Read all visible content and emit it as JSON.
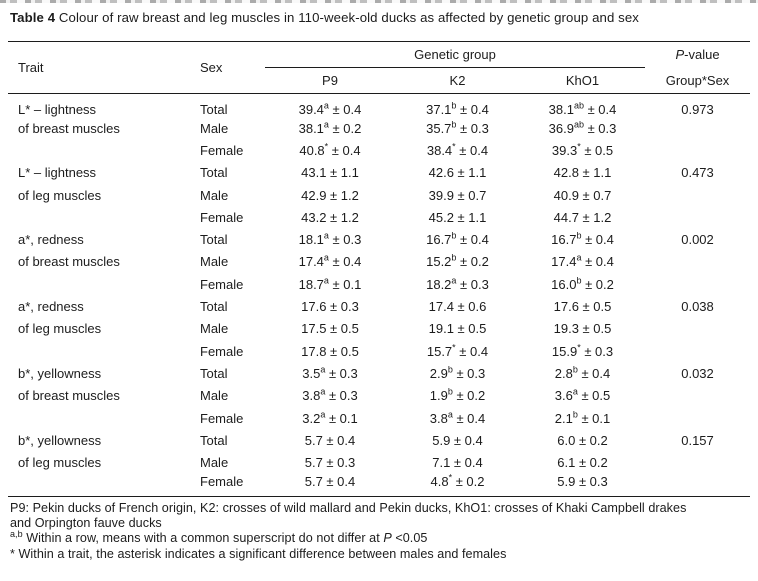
{
  "page": {
    "background": "#ffffff",
    "ink": "#1c1c1c"
  },
  "title": {
    "segments": [
      {
        "t": "Table 4",
        "s": "b"
      },
      {
        "t": " Colour of raw breast and leg muscles in 110-week-old ducks as affected by genetic group and sex",
        "s": "n"
      }
    ]
  },
  "table": {
    "headers": {
      "trait": "Trait",
      "sex": "Sex",
      "genetic_group": "Genetic group",
      "pvalue_segments": [
        {
          "t": "P",
          "s": "i"
        },
        {
          "t": "-value",
          "s": "n"
        }
      ],
      "groups": [
        "P9",
        "K2",
        "KhO1"
      ],
      "pvalue_sub": "Group*Sex"
    },
    "plus_minus": "±",
    "blocks": [
      {
        "trait": [
          "L* – lightness",
          "of breast muscles"
        ],
        "rows": [
          {
            "sex": "Total",
            "cells": [
              {
                "mean": "39.4",
                "sup": "a",
                "err": "0.4"
              },
              {
                "mean": "37.1",
                "sup": "b",
                "err": "0.4"
              },
              {
                "mean": "38.1",
                "sup": "ab",
                "err": "0.4"
              }
            ],
            "p": "0.973"
          },
          {
            "sex": "Male",
            "cells": [
              {
                "mean": "38.1",
                "sup": "a",
                "err": "0.2"
              },
              {
                "mean": "35.7",
                "sup": "b",
                "err": "0.3"
              },
              {
                "mean": "36.9",
                "sup": "ab",
                "err": "0.3"
              }
            ],
            "p": ""
          },
          {
            "sex": "Female",
            "cells": [
              {
                "mean": "40.8",
                "sup": "*",
                "err": "0.4"
              },
              {
                "mean": "38.4",
                "sup": "*",
                "err": "0.4"
              },
              {
                "mean": "39.3",
                "sup": "*",
                "err": "0.5"
              }
            ],
            "p": ""
          }
        ]
      },
      {
        "trait": [
          "L* – lightness",
          "of leg muscles"
        ],
        "rows": [
          {
            "sex": "Total",
            "cells": [
              {
                "mean": "43.1",
                "sup": "",
                "err": "1.1"
              },
              {
                "mean": "42.6",
                "sup": "",
                "err": "1.1"
              },
              {
                "mean": "42.8",
                "sup": "",
                "err": "1.1"
              }
            ],
            "p": "0.473"
          },
          {
            "sex": "Male",
            "cells": [
              {
                "mean": "42.9",
                "sup": "",
                "err": "1.2"
              },
              {
                "mean": "39.9",
                "sup": "",
                "err": "0.7"
              },
              {
                "mean": "40.9",
                "sup": "",
                "err": "0.7"
              }
            ],
            "p": ""
          },
          {
            "sex": "Female",
            "cells": [
              {
                "mean": "43.2",
                "sup": "",
                "err": "1.2"
              },
              {
                "mean": "45.2",
                "sup": "",
                "err": "1.1"
              },
              {
                "mean": "44.7",
                "sup": "",
                "err": "1.2"
              }
            ],
            "p": ""
          }
        ]
      },
      {
        "trait": [
          "a*, redness",
          "of breast muscles"
        ],
        "rows": [
          {
            "sex": "Total",
            "cells": [
              {
                "mean": "18.1",
                "sup": "a",
                "err": "0.3"
              },
              {
                "mean": "16.7",
                "sup": "b",
                "err": "0.4"
              },
              {
                "mean": "16.7",
                "sup": "b",
                "err": "0.4"
              }
            ],
            "p": "0.002"
          },
          {
            "sex": "Male",
            "cells": [
              {
                "mean": "17.4",
                "sup": "a",
                "err": "0.4"
              },
              {
                "mean": "15.2",
                "sup": "b",
                "err": "0.2"
              },
              {
                "mean": "17.4",
                "sup": "a",
                "err": "0.4"
              }
            ],
            "p": ""
          },
          {
            "sex": "Female",
            "cells": [
              {
                "mean": "18.7",
                "sup": "a",
                "err": "0.1"
              },
              {
                "mean": "18.2",
                "sup": "a",
                "err": "0.3"
              },
              {
                "mean": "16.0",
                "sup": "b",
                "err": "0.2"
              }
            ],
            "p": ""
          }
        ]
      },
      {
        "trait": [
          "a*, redness",
          "of leg muscles"
        ],
        "rows": [
          {
            "sex": "Total",
            "cells": [
              {
                "mean": "17.6",
                "sup": "",
                "err": "0.3"
              },
              {
                "mean": "17.4",
                "sup": "",
                "err": "0.6"
              },
              {
                "mean": "17.6",
                "sup": "",
                "err": "0.5"
              }
            ],
            "p": "0.038"
          },
          {
            "sex": "Male",
            "cells": [
              {
                "mean": "17.5",
                "sup": "",
                "err": "0.5"
              },
              {
                "mean": "19.1",
                "sup": "",
                "err": "0.5"
              },
              {
                "mean": "19.3",
                "sup": "",
                "err": "0.5"
              }
            ],
            "p": ""
          },
          {
            "sex": "Female",
            "cells": [
              {
                "mean": "17.8",
                "sup": "",
                "err": "0.5"
              },
              {
                "mean": "15.7",
                "sup": "*",
                "err": "0.4"
              },
              {
                "mean": "15.9",
                "sup": "*",
                "err": "0.3"
              }
            ],
            "p": ""
          }
        ]
      },
      {
        "trait": [
          "b*, yellowness",
          "of breast muscles"
        ],
        "rows": [
          {
            "sex": "Total",
            "cells": [
              {
                "mean": "3.5",
                "sup": "a",
                "err": "0.3"
              },
              {
                "mean": "2.9",
                "sup": "b",
                "err": "0.3"
              },
              {
                "mean": "2.8",
                "sup": "b",
                "err": "0.4"
              }
            ],
            "p": "0.032"
          },
          {
            "sex": "Male",
            "cells": [
              {
                "mean": "3.8",
                "sup": "a",
                "err": "0.3"
              },
              {
                "mean": "1.9",
                "sup": "b",
                "err": "0.2"
              },
              {
                "mean": "3.6",
                "sup": "a",
                "err": "0.5"
              }
            ],
            "p": ""
          },
          {
            "sex": "Female",
            "cells": [
              {
                "mean": "3.2",
                "sup": "a",
                "err": "0.1"
              },
              {
                "mean": "3.8",
                "sup": "a",
                "err": "0.4"
              },
              {
                "mean": "2.1",
                "sup": "b",
                "err": "0.1"
              }
            ],
            "p": ""
          }
        ]
      },
      {
        "trait": [
          "b*, yellowness",
          "of leg muscles"
        ],
        "rows": [
          {
            "sex": "Total",
            "cells": [
              {
                "mean": "5.7",
                "sup": "",
                "err": "0.4"
              },
              {
                "mean": "5.9",
                "sup": "",
                "err": "0.4"
              },
              {
                "mean": "6.0",
                "sup": "",
                "err": "0.2"
              }
            ],
            "p": "0.157"
          },
          {
            "sex": "Male",
            "cells": [
              {
                "mean": "5.7",
                "sup": "",
                "err": "0.3"
              },
              {
                "mean": "7.1",
                "sup": "",
                "err": "0.4"
              },
              {
                "mean": "6.1",
                "sup": "",
                "err": "0.2"
              }
            ],
            "p": ""
          },
          {
            "sex": "Female",
            "cells": [
              {
                "mean": "5.7",
                "sup": "",
                "err": "0.4"
              },
              {
                "mean": "4.8",
                "sup": "*",
                "err": "0.2"
              },
              {
                "mean": "5.9",
                "sup": "",
                "err": "0.3"
              }
            ],
            "p": ""
          }
        ]
      }
    ]
  },
  "footnotes": [
    {
      "segments": [
        {
          "t": "P9: Pekin ducks of French origin, K2: crosses of wild mallard and Pekin ducks, KhO1: crosses of Khaki Campbell drakes",
          "s": "n"
        },
        {
          "t": "",
          "s": "br"
        },
        {
          "t": "and Orpington fauve ducks",
          "s": "n"
        }
      ]
    },
    {
      "segments": [
        {
          "t": "a,b",
          "s": "sup"
        },
        {
          "t": " Within a row, means with a common superscript do not differ at ",
          "s": "n"
        },
        {
          "t": "P",
          "s": "i"
        },
        {
          "t": " <0.05",
          "s": "n"
        }
      ]
    },
    {
      "segments": [
        {
          "t": "* Within a trait, the asterisk indicates a significant difference between males and females",
          "s": "n"
        }
      ]
    }
  ]
}
